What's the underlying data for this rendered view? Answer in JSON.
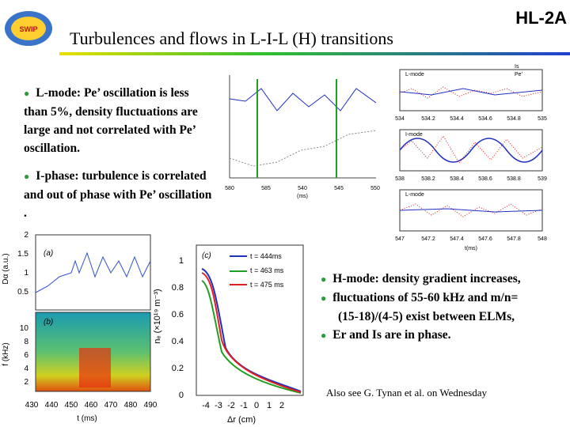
{
  "header": {
    "logo": "SWIP",
    "tag": "HL-2A",
    "title": "Turbulences and flows in L-I-L (H) transitions"
  },
  "bullets_left": [
    "L-mode: Pe’ oscillation is less than 5%, density fluctuations are large and not correlated with Pe’ oscillation.",
    "I-phase: turbulence is correlated and out of phase with Pe’ oscillation ."
  ],
  "bullets_right": [
    "H-mode: density gradient increases,",
    "fluctuations of 55-60 kHz and m/n=(15-18)/(4-5) exist between ELMs,",
    "Er and Is are in phase."
  ],
  "footnote": "Also see G. Tynan et al. on Wednesday",
  "figure_top_middle": {
    "xticks": [
      "580",
      "585",
      "540",
      "545",
      "550"
    ],
    "xlabel": "(ms)"
  },
  "figure_top_right": {
    "legend": [
      "Is",
      "Pe’"
    ],
    "panels": [
      "L-mode",
      "I-mode",
      "L-mode"
    ],
    "xticks_1": [
      "534",
      "534.2",
      "534.4",
      "534.6",
      "534.8",
      "535"
    ],
    "xticks_2": [
      "538",
      "538.2",
      "538.4",
      "538.6",
      "538.8",
      "539"
    ],
    "xticks_3": [
      "547",
      "547.2",
      "547.4",
      "547.6",
      "547.8",
      "548"
    ],
    "xlabel": "t(ms)"
  },
  "figure_ab": {
    "label_a": "(a)",
    "label_b": "(b)",
    "ylabel_a": "Dα (a.u.)",
    "ylabel_b": "f (kHz)",
    "yticks_a": [
      "2",
      "1.5",
      "1",
      "0.5"
    ],
    "yticks_b": [
      "10",
      "8",
      "6",
      "4",
      "2"
    ],
    "xticks": [
      "430",
      "440",
      "450",
      "460",
      "470",
      "480",
      "490"
    ],
    "xlabel": "t (ms)"
  },
  "figure_c": {
    "label": "(c)",
    "legend": [
      "t = 444ms",
      "t = 463 ms",
      "t = 475 ms"
    ],
    "yticks": [
      "0",
      "0.2",
      "0.4",
      "0.6",
      "0.8",
      "1"
    ],
    "xticks": [
      "-4",
      "-3",
      "-2",
      "-1",
      "0",
      "1",
      "2"
    ],
    "ylabel": "nₑ (×10¹⁹ m⁻³)",
    "xlabel": "Δr (cm)"
  }
}
